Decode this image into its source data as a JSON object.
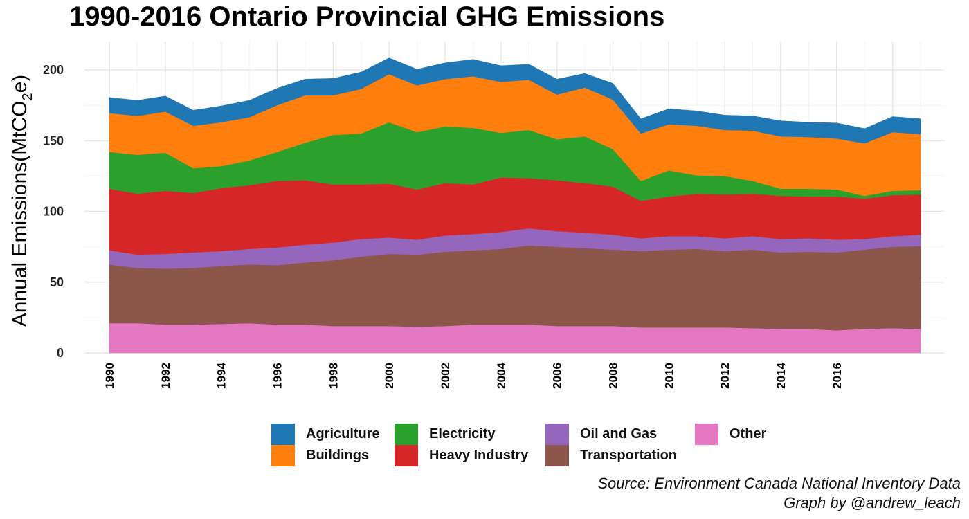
{
  "title": "1990-2016 Ontario Provincial GHG Emissions",
  "caption": {
    "source": "Source: Environment Canada National Inventory Data",
    "credit": "Graph by @andrew_leach"
  },
  "chart_data": {
    "type": "area",
    "stacked": true,
    "ylabel_main": "Annual Emissions(MtCO",
    "ylabel_sub": "2",
    "ylabel_tail": "e)",
    "ylim": [
      0,
      220
    ],
    "yticks": [
      0,
      50,
      100,
      150,
      200
    ],
    "xlim": [
      1990,
      2019
    ],
    "xticks": [
      "1990",
      "1992",
      "1994",
      "1996",
      "1998",
      "2000",
      "2002",
      "2004",
      "2006",
      "2008",
      "2010",
      "2012",
      "2014",
      "2016"
    ],
    "x": [
      1990,
      1991,
      1992,
      1993,
      1994,
      1995,
      1996,
      1997,
      1998,
      1999,
      2000,
      2001,
      2002,
      2003,
      2004,
      2005,
      2006,
      2007,
      2008,
      2009,
      2010,
      2011,
      2012,
      2013,
      2014,
      2015,
      2016,
      2017,
      2018,
      2019
    ],
    "grid": true,
    "legend_position": "bottom",
    "series": [
      {
        "name": "Other",
        "color": "#e377c2",
        "values": [
          21,
          21,
          20,
          20,
          20.5,
          21,
          20,
          20,
          19,
          19,
          19,
          18.5,
          19,
          20,
          20,
          20,
          19,
          19,
          19,
          18,
          18,
          18,
          18,
          17.5,
          17,
          17,
          16,
          17,
          17.5,
          17
        ]
      },
      {
        "name": "Transportation",
        "color": "#8c564b",
        "values": [
          41.5,
          39,
          39.5,
          40,
          41,
          41.5,
          42,
          44,
          46.5,
          49,
          51,
          51,
          52.5,
          52.5,
          53.5,
          56,
          56,
          55,
          54,
          54,
          55,
          55.5,
          54,
          55.5,
          54,
          54.5,
          55,
          56,
          57.5,
          58.5
        ]
      },
      {
        "name": "Oil and Gas",
        "color": "#9467bd",
        "values": [
          10,
          9.5,
          10.5,
          11,
          10.5,
          11,
          12.5,
          12.5,
          12.5,
          12.5,
          11.5,
          10.5,
          11.5,
          11.5,
          12,
          12,
          11,
          11,
          10.5,
          9,
          9.5,
          9,
          9,
          9.5,
          9.5,
          9.5,
          9,
          7.5,
          7.5,
          8
        ]
      },
      {
        "name": "Heavy Industry",
        "color": "#d62728",
        "values": [
          43.5,
          43,
          44.5,
          42,
          44.5,
          45,
          47,
          45.5,
          41,
          38.5,
          38,
          35.5,
          37,
          35,
          38.5,
          35.5,
          36,
          35,
          34,
          26.5,
          28,
          30,
          31,
          30,
          30.5,
          29.5,
          30.5,
          28.5,
          29,
          28.5
        ]
      },
      {
        "name": "Electricity",
        "color": "#2ca02c",
        "values": [
          26,
          27.5,
          27,
          17.5,
          15.5,
          17.5,
          20.5,
          26.5,
          35,
          36,
          43.5,
          40.5,
          40,
          40,
          31.5,
          34,
          29,
          33,
          26.5,
          14,
          18.5,
          13,
          13,
          9,
          5,
          5.5,
          5,
          2,
          3,
          3
        ]
      },
      {
        "name": "Buildings",
        "color": "#ff7f0e",
        "values": [
          27.5,
          27.5,
          29,
          30,
          31,
          30.5,
          33,
          33.5,
          28,
          31.5,
          34,
          33,
          33.5,
          36.5,
          36,
          35.5,
          31.5,
          34.5,
          35,
          33.5,
          32.5,
          35,
          32.5,
          35.5,
          37,
          36.5,
          36,
          37,
          41.5,
          39.5
        ]
      },
      {
        "name": "Agriculture",
        "color": "#1f77b4",
        "values": [
          11,
          11,
          11,
          11,
          11.5,
          12,
          12,
          11.5,
          12,
          12,
          11.5,
          11.5,
          11.5,
          12,
          11.5,
          11,
          11,
          10,
          11.5,
          10.5,
          11,
          10.5,
          10.5,
          10.5,
          11,
          10.5,
          11,
          10.5,
          11,
          11
        ]
      }
    ]
  },
  "legend": [
    {
      "label": "Agriculture",
      "color": "#1f77b4"
    },
    {
      "label": "Buildings",
      "color": "#ff7f0e"
    },
    {
      "label": "Electricity",
      "color": "#2ca02c"
    },
    {
      "label": "Heavy Industry",
      "color": "#d62728"
    },
    {
      "label": "Oil and Gas",
      "color": "#9467bd"
    },
    {
      "label": "Transportation",
      "color": "#8c564b"
    },
    {
      "label": "Other",
      "color": "#e377c2"
    }
  ]
}
